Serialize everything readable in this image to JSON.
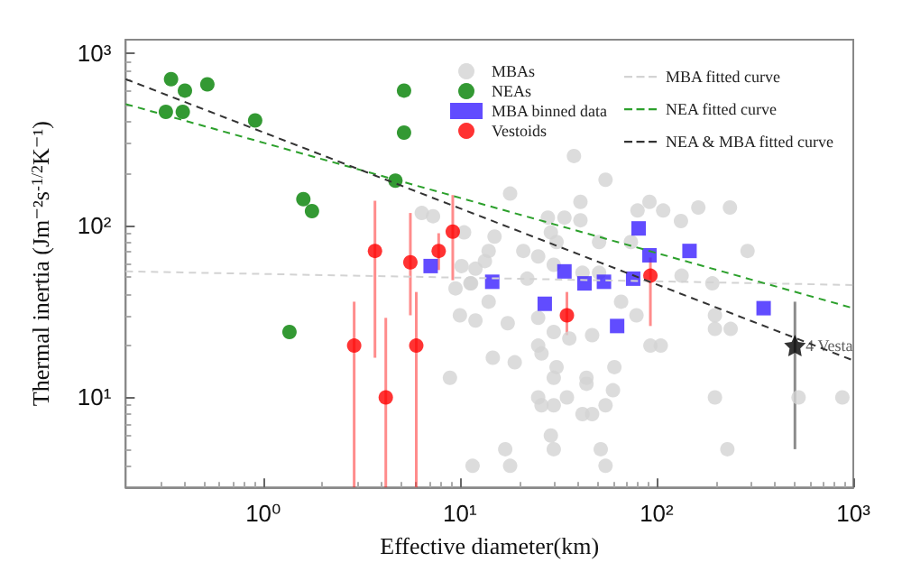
{
  "chart_data": {
    "type": "scatter",
    "xlabel": "Effective diameter(km)",
    "ylabel": "Thermal inertia (Jm⁻²s$^{-1/2}$K⁻¹)",
    "log": "xy",
    "xlim": [
      0.2,
      1000
    ],
    "ylim": [
      3,
      1200
    ],
    "xticks": [
      {
        "value": 1,
        "label": "10⁰"
      },
      {
        "value": 10,
        "label": "10¹"
      },
      {
        "value": 100,
        "label": "10²"
      },
      {
        "value": 1000,
        "label": "10³"
      }
    ],
    "yticks": [
      {
        "value": 10,
        "label": "10¹"
      },
      {
        "value": 100,
        "label": "10²"
      },
      {
        "value": 1000,
        "label": "10³"
      }
    ],
    "grid": false,
    "legend": "top right",
    "annotations": [
      {
        "text": "4 Vesta",
        "x": 505,
        "y": 20
      }
    ],
    "series": [
      {
        "name": "MBAs",
        "marker": "circle",
        "color": "#d3d3d3",
        "x": [
          38,
          18,
          55,
          41,
          80,
          92,
          108,
          163,
          236,
          133,
          290,
          28,
          34,
          41,
          10.5,
          15,
          29,
          31,
          51,
          74,
          14,
          21,
          25,
          13.4,
          12,
          10.2,
          30,
          42,
          51,
          134,
          22,
          11.4,
          192,
          6.4,
          7.3,
          9.5,
          11.3,
          10,
          12,
          14,
          17.5,
          14.7,
          19,
          8.9,
          25,
          30,
          25,
          26,
          31,
          30,
          44,
          44,
          61,
          60,
          25,
          26,
          30,
          35,
          55,
          42,
          47,
          29,
          30,
          17,
          52,
          229,
          11.6,
          18,
          55,
          198,
          527,
          880,
          93,
          105,
          198,
          238,
          198,
          66,
          79,
          47,
          36
        ],
        "values": [
          253,
          153,
          184,
          137,
          122,
          137,
          122,
          127,
          127,
          106,
          71,
          111,
          111,
          107,
          91,
          86,
          91,
          80,
          80,
          80,
          71,
          71,
          66,
          62,
          56,
          58,
          59,
          53,
          53,
          51,
          49,
          46,
          46,
          118,
          113,
          43,
          46,
          30,
          28,
          36,
          27,
          17,
          16,
          13,
          29,
          24,
          20,
          18,
          15,
          13,
          13,
          12,
          15,
          11,
          10,
          9,
          9,
          10,
          9,
          8,
          8,
          6,
          5,
          5,
          5,
          5,
          4,
          4,
          4,
          10,
          10,
          10,
          20,
          20,
          30,
          25,
          25,
          36,
          30,
          23,
          22
        ]
      },
      {
        "name": "NEAs",
        "marker": "circle",
        "color": "#008000",
        "x": [
          0.32,
          0.34,
          0.4,
          0.39,
          0.52,
          0.91,
          1.6,
          1.77,
          4.7,
          5.2,
          5.2,
          1.36
        ],
        "values": [
          457,
          708,
          607,
          457,
          660,
          407,
          142,
          121,
          182,
          607,
          346,
          24
        ]
      },
      {
        "name": "MBA binned data",
        "marker": "square",
        "color": "#3a1fff",
        "x": [
          7.1,
          14.6,
          34,
          43,
          54,
          76,
          81,
          92,
          147,
          27,
          63,
          350
        ],
        "values": [
          58,
          47,
          54,
          46,
          47,
          49,
          96,
          67,
          71,
          35,
          26,
          33
        ]
      },
      {
        "name": "Vestoids",
        "marker": "circle",
        "color": "#ff0000",
        "x": [
          3.7,
          5.6,
          7.8,
          9.2,
          2.9,
          4.2,
          6,
          35,
          93
        ],
        "values": [
          71,
          61,
          71,
          92,
          20,
          10,
          20,
          30,
          51
        ],
        "errors": [
          [
            17,
            139
          ],
          [
            30,
            118
          ],
          [
            55,
            90
          ],
          [
            48,
            150
          ],
          [
            3,
            36
          ],
          [
            3,
            29
          ],
          [
            3,
            41
          ],
          [
            23,
            41
          ],
          [
            26,
            65
          ]
        ]
      },
      {
        "marker": "star",
        "color": "#000000",
        "x": [
          505
        ],
        "values": [
          20
        ],
        "errors": [
          [
            5,
            36
          ]
        ]
      },
      {
        "name": "MBA fitted curve",
        "type": "line",
        "line_style": "dashed",
        "color": "#d3d3d3",
        "x": [
          0.2,
          1000
        ],
        "values": [
          54,
          45
        ]
      },
      {
        "name": "NEA fitted curve",
        "type": "line",
        "line_style": "dashed",
        "color": "#2ca02c",
        "x": [
          0.2,
          1000
        ],
        "values": [
          507,
          33
        ]
      },
      {
        "name": "NEA & MBA fitted curve",
        "type": "line",
        "line_style": "dashed",
        "color": "#333333",
        "x": [
          0.2,
          1000
        ],
        "values": [
          708,
          16.4
        ]
      }
    ]
  }
}
